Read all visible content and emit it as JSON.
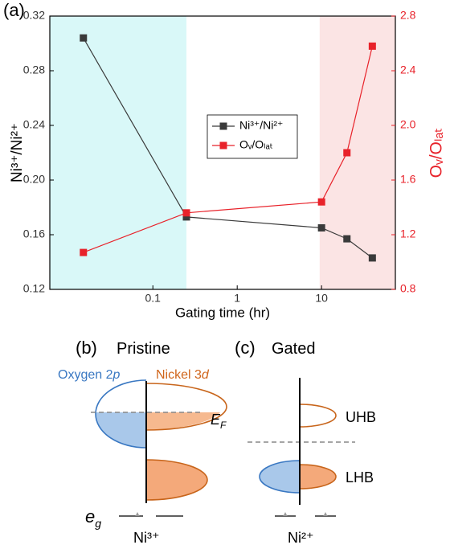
{
  "panel_labels": {
    "a": "(a)",
    "b": "(b)",
    "c": "(c)"
  },
  "chart_data": {
    "type": "line",
    "x_label": "Gating time (hr)",
    "y_label": "Ni³⁺/Ni²⁺",
    "y2_label": "Oᵥ/Oₗₐₜ",
    "x": [
      0.015,
      0.25,
      10,
      20,
      40
    ],
    "series": [
      {
        "name": "Ni³⁺/Ni²⁺",
        "color": "#3a3a3a",
        "values": [
          0.304,
          0.173,
          0.165,
          0.157,
          0.143
        ]
      },
      {
        "name": "Oᵥ/Oₗₐₜ",
        "color": "#e8222a",
        "axis": "y2",
        "values": [
          1.07,
          1.36,
          1.44,
          1.8,
          2.58
        ]
      }
    ],
    "xscale": "log",
    "xlim": [
      0.006,
      75
    ],
    "xticks": [
      0.1,
      1,
      10
    ],
    "ylim": [
      0.12,
      0.32
    ],
    "yticks": [
      0.12,
      0.16,
      {
        "value": 0.2,
        "label": "0.20"
      },
      0.24,
      0.28,
      0.32
    ],
    "y2lim": [
      0.8,
      2.8
    ],
    "y2ticks": [
      0.8,
      1.2,
      1.6,
      {
        "value": 2,
        "label": "2.0"
      },
      2.4,
      2.8
    ],
    "y2_color": "#e8222a",
    "shaded_regions": [
      {
        "from": 0.006,
        "to": 0.25,
        "color": "#d9f8f8"
      },
      {
        "from": 9.5,
        "to": 75,
        "color": "#fbe4e4"
      }
    ],
    "legend": "center"
  },
  "diagram": {
    "pristine": {
      "title": "Pristine",
      "oxygen": {
        "text": "Oxygen 2",
        "italic": "p"
      },
      "nickel": {
        "text": "Nickel 3",
        "italic": "d"
      },
      "fermi": {
        "main": "E",
        "sub": "F"
      },
      "eg": {
        "main": "e",
        "sub": "g"
      },
      "ion": "Ni³⁺"
    },
    "gated": {
      "title": "Gated",
      "upper": "UHB",
      "lower": "LHB",
      "ion": "Ni²⁺"
    }
  }
}
